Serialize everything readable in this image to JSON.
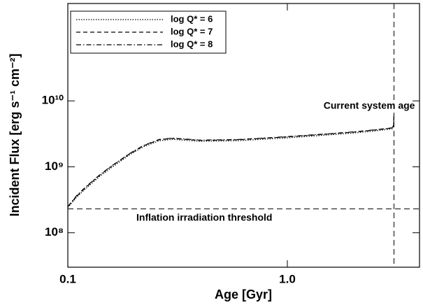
{
  "chart_data": {
    "type": "line",
    "xlabel": "Age [Gyr]",
    "ylabel": "Incident Flux [erg s⁻¹ cm⁻²]",
    "xlog": true,
    "ylog": true,
    "xlim": [
      0.1,
      4
    ],
    "ylim": [
      30000000,
      300000000000
    ],
    "xticks": [
      0.1,
      {
        "value": 1,
        "label": "1.0"
      }
    ],
    "yticks": [
      {
        "value": 100000000,
        "label": "10⁸"
      },
      {
        "value": 1000000000,
        "label": "10⁹"
      },
      {
        "value": 10000000000,
        "label": "10¹⁰"
      }
    ],
    "legend": "upper left",
    "x": [
      0.1,
      0.11,
      0.12,
      0.14,
      0.16,
      0.19,
      0.22,
      0.26,
      0.3,
      0.4,
      0.6,
      1.0,
      1.5,
      2.0,
      2.5,
      3.0,
      3.05,
      3.06
    ],
    "series": [
      {
        "name": "log Q* = 6",
        "color": "#000000",
        "dash": "dotted",
        "values": [
          240000000,
          350000000,
          460000000,
          720000000,
          1000000000,
          1500000000,
          2000000000,
          2480000000,
          2610000000,
          2430000000,
          2490000000,
          2750000000,
          3030000000,
          3250000000,
          3500000000,
          3760000000,
          4150000000,
          6000000000
        ]
      },
      {
        "name": "log Q* = 7",
        "color": "#000000",
        "dash": "dashed",
        "values": [
          250000000,
          360000000,
          480000000,
          750000000,
          1050000000,
          1550000000,
          2070000000,
          2570000000,
          2700000000,
          2510000000,
          2570000000,
          2840000000,
          3130000000,
          3360000000,
          3610000000,
          3880000000,
          4280000000,
          6150000000
        ]
      },
      {
        "name": "log Q* = 8",
        "color": "#000000",
        "dash": "dashdot",
        "values": [
          250000000,
          370000000,
          490000000,
          760000000,
          1060000000,
          1570000000,
          2090000000,
          2600000000,
          2730000000,
          2540000000,
          2600000000,
          2870000000,
          3160000000,
          3390000000,
          3640000000,
          3910000000,
          4320000000,
          6200000000
        ]
      }
    ],
    "hline": {
      "value": 230000000,
      "text": "Inflation irradiation threshold"
    },
    "vline": {
      "value": 3.06,
      "text": "Current system age"
    }
  }
}
